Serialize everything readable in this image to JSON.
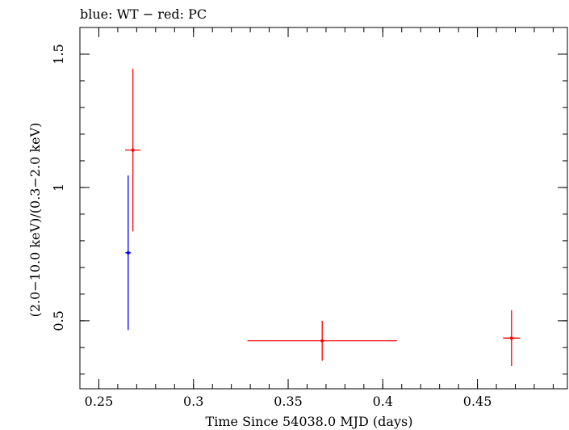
{
  "chart_data": {
    "type": "scatter",
    "title": "blue: WT − red: PC",
    "xlabel": "Time Since 54038.0 MJD (days)",
    "ylabel": "(2.0−10.0 keV)/(0.3−2.0 keV)",
    "xlim": [
      0.24,
      0.4975
    ],
    "ylim": [
      0.245,
      1.6
    ],
    "x_ticks": [
      {
        "value": 0.25,
        "label": "0.25"
      },
      {
        "value": 0.3,
        "label": "0.3"
      },
      {
        "value": 0.35,
        "label": "0.35"
      },
      {
        "value": 0.4,
        "label": "0.4"
      },
      {
        "value": 0.45,
        "label": "0.45"
      }
    ],
    "y_ticks": [
      {
        "value": 0.5,
        "label": "0.5"
      },
      {
        "value": 1.0,
        "label": "1"
      },
      {
        "value": 1.5,
        "label": "1.5"
      }
    ],
    "grid": false,
    "series": [
      {
        "color": "#0000ff",
        "points": [
          {
            "x": 0.2655,
            "xerr": 0.0015,
            "y": 0.755,
            "yerr_low": 0.29,
            "yerr_high": 0.29
          }
        ]
      },
      {
        "color": "#ff0000",
        "points": [
          {
            "x": 0.268,
            "xerr": 0.0041,
            "y": 1.14,
            "yerr_low": 0.305,
            "yerr_high": 0.305
          },
          {
            "x": 0.368,
            "xerr": 0.0395,
            "y": 0.425,
            "yerr_low": 0.075,
            "yerr_high": 0.075
          },
          {
            "x": 0.468,
            "xerr": 0.0045,
            "y": 0.435,
            "yerr_low": 0.105,
            "yerr_high": 0.105
          }
        ]
      }
    ]
  }
}
